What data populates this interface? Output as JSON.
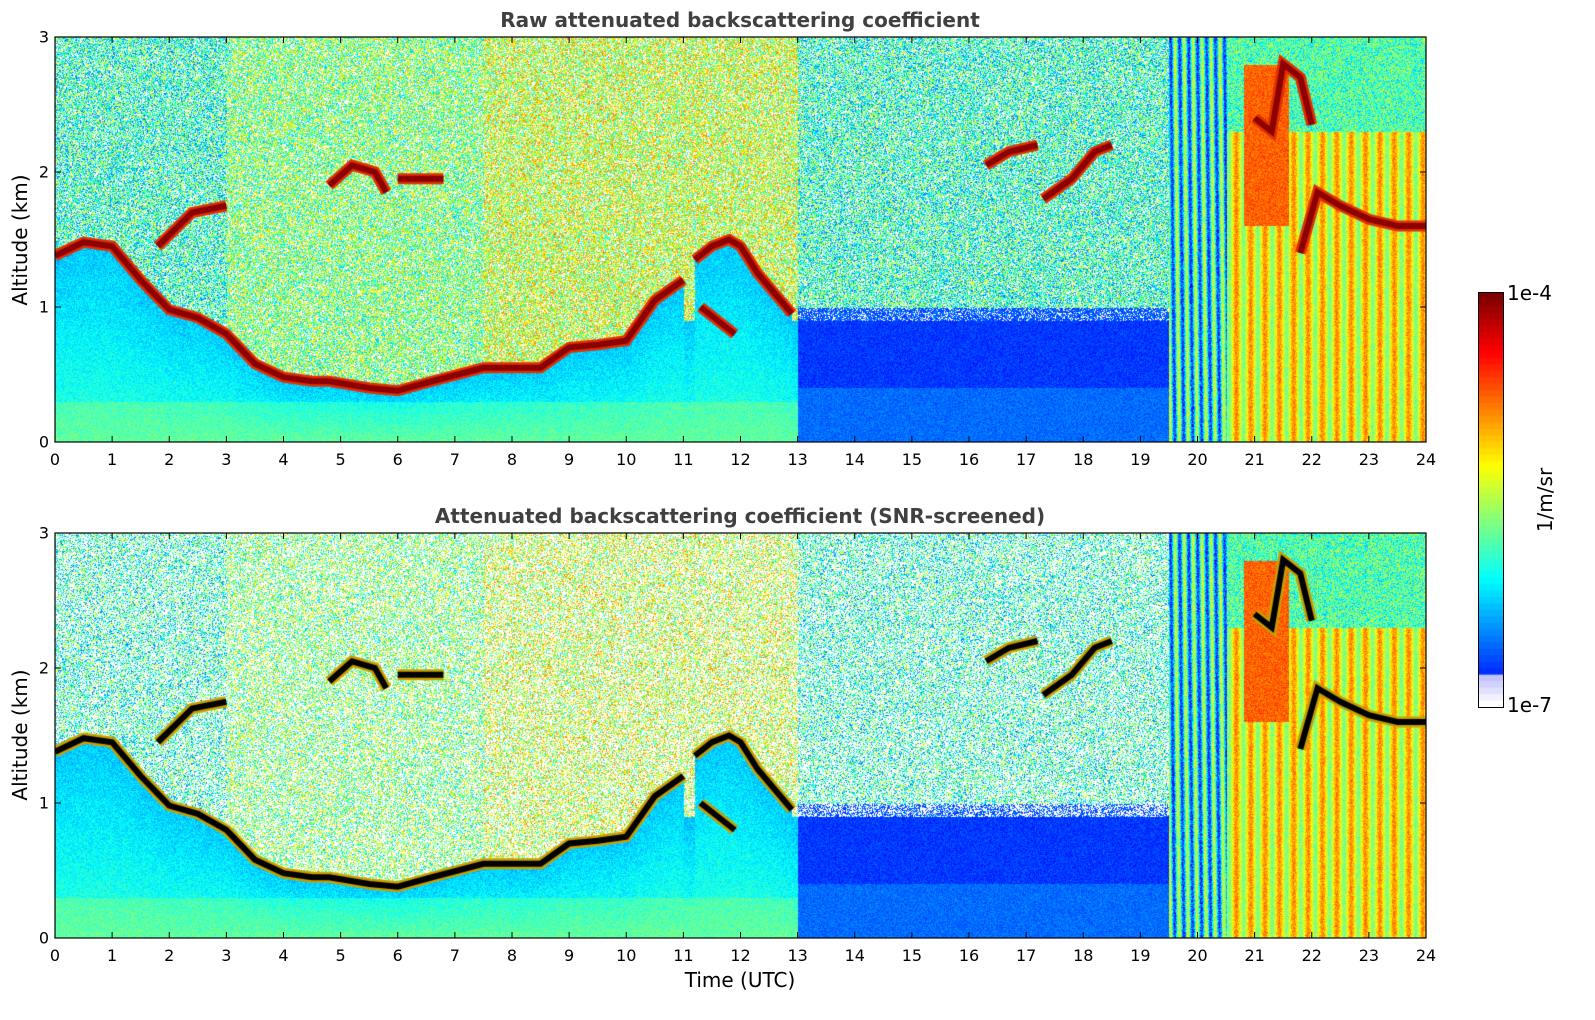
{
  "chart_data": [
    {
      "type": "heatmap",
      "title": "Raw attenuated backscattering coefficient",
      "xlabel": "",
      "ylabel": "Altitude (km)",
      "xlim": [
        0,
        24
      ],
      "ylim": [
        0,
        3
      ],
      "xticks": [
        "0",
        "1",
        "2",
        "3",
        "4",
        "5",
        "6",
        "7",
        "8",
        "9",
        "10",
        "11",
        "12",
        "13",
        "14",
        "15",
        "16",
        "17",
        "18",
        "19",
        "20",
        "21",
        "22",
        "23",
        "24"
      ],
      "yticks": [
        "0",
        "1",
        "2",
        "3"
      ],
      "screened": false,
      "layers": [
        {
          "name": "boundary-layer",
          "points": [
            [
              0,
              1.38
            ],
            [
              0.5,
              1.48
            ],
            [
              1,
              1.45
            ],
            [
              1.5,
              1.2
            ],
            [
              2,
              0.98
            ],
            [
              2.5,
              0.92
            ],
            [
              3,
              0.8
            ],
            [
              3.5,
              0.58
            ],
            [
              4,
              0.48
            ],
            [
              4.5,
              0.45
            ],
            [
              4.8,
              0.45
            ],
            [
              5.5,
              0.4
            ],
            [
              6,
              0.38
            ],
            [
              6.6,
              0.45
            ],
            [
              7.5,
              0.55
            ],
            [
              8,
              0.55
            ],
            [
              8.5,
              0.55
            ],
            [
              9,
              0.7
            ],
            [
              9.5,
              0.72
            ],
            [
              10,
              0.75
            ],
            [
              10.5,
              1.05
            ],
            [
              11,
              1.2
            ]
          ]
        },
        {
          "name": "elevated-layer",
          "points": [
            [
              11.2,
              1.35
            ],
            [
              11.5,
              1.45
            ],
            [
              11.8,
              1.5
            ],
            [
              12,
              1.45
            ],
            [
              12.3,
              1.25
            ],
            [
              12.6,
              1.1
            ],
            [
              12.9,
              0.95
            ]
          ]
        },
        {
          "name": "lower-branch",
          "points": [
            [
              11.3,
              1.0
            ],
            [
              11.6,
              0.9
            ],
            [
              11.9,
              0.8
            ]
          ]
        },
        {
          "name": "cloud-a",
          "points": [
            [
              1.8,
              1.45
            ],
            [
              2.4,
              1.7
            ],
            [
              3.0,
              1.75
            ]
          ]
        },
        {
          "name": "cloud-b",
          "points": [
            [
              4.8,
              1.9
            ],
            [
              5.2,
              2.05
            ],
            [
              5.6,
              2.0
            ],
            [
              5.8,
              1.85
            ]
          ]
        },
        {
          "name": "cloud-c",
          "points": [
            [
              6.0,
              1.95
            ],
            [
              6.5,
              1.95
            ],
            [
              6.8,
              1.95
            ]
          ]
        },
        {
          "name": "cloud-d",
          "points": [
            [
              16.3,
              2.05
            ],
            [
              16.7,
              2.15
            ],
            [
              17.2,
              2.2
            ]
          ]
        },
        {
          "name": "cloud-e",
          "points": [
            [
              17.3,
              1.8
            ],
            [
              17.8,
              1.95
            ],
            [
              18.2,
              2.15
            ],
            [
              18.5,
              2.2
            ]
          ]
        },
        {
          "name": "cloud-f",
          "points": [
            [
              21.0,
              2.4
            ],
            [
              21.3,
              2.3
            ],
            [
              21.5,
              2.8
            ],
            [
              21.8,
              2.7
            ],
            [
              22.0,
              2.35
            ]
          ]
        },
        {
          "name": "cloud-g",
          "points": [
            [
              21.8,
              1.4
            ],
            [
              22.1,
              1.85
            ],
            [
              22.5,
              1.75
            ],
            [
              23.0,
              1.65
            ],
            [
              23.5,
              1.6
            ],
            [
              24,
              1.6
            ]
          ]
        }
      ]
    },
    {
      "type": "heatmap",
      "title": "Attenuated backscattering coefficient (SNR-screened)",
      "xlabel": "Time (UTC)",
      "ylabel": "Altitude (km)",
      "xlim": [
        0,
        24
      ],
      "ylim": [
        0,
        3
      ],
      "xticks": [
        "0",
        "1",
        "2",
        "3",
        "4",
        "5",
        "6",
        "7",
        "8",
        "9",
        "10",
        "11",
        "12",
        "13",
        "14",
        "15",
        "16",
        "17",
        "18",
        "19",
        "20",
        "21",
        "22",
        "23",
        "24"
      ],
      "yticks": [
        "0",
        "1",
        "2",
        "3"
      ],
      "screened": true
    }
  ],
  "colorbar": {
    "max_label": "1e-4",
    "min_label": "1e-7",
    "unit_label": "1/m/sr",
    "scale": "log",
    "range": [
      1e-07,
      0.0001
    ],
    "colormap": "jet",
    "saturated_color": "#000000"
  }
}
